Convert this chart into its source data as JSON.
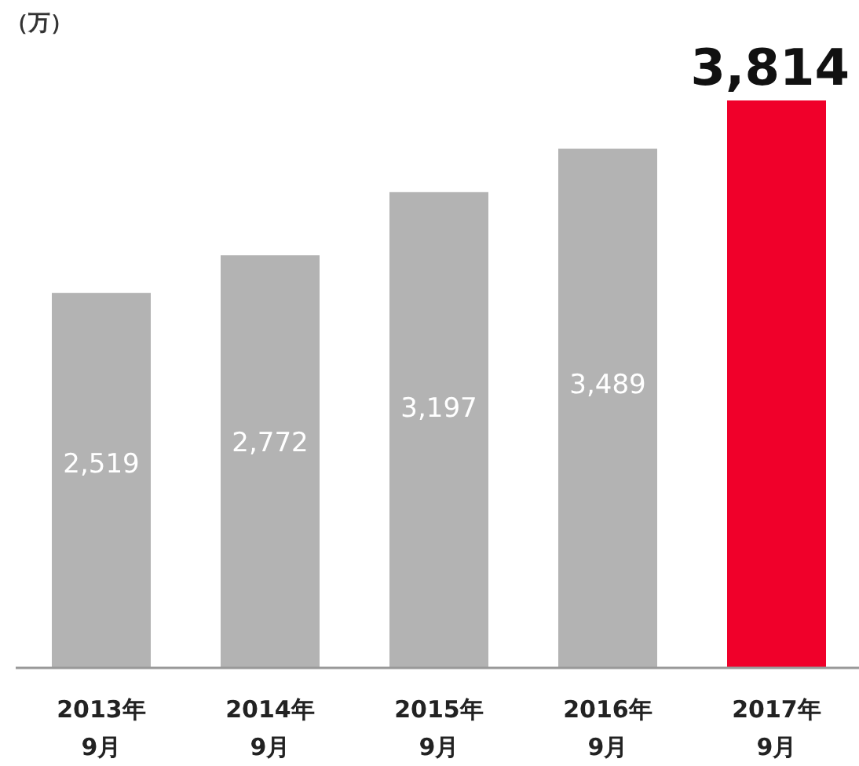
{
  "chart_data": {
    "type": "bar",
    "ylabel": "（万）",
    "categories": [
      "2013年\n9月",
      "2014年\n9月",
      "2015年\n9月",
      "2016年\n9月",
      "2017年\n9月"
    ],
    "values": [
      2519,
      2772,
      3197,
      3489,
      3814
    ],
    "value_labels": [
      "2,519",
      "2,772",
      "3,197",
      "3,489",
      "3,814"
    ],
    "colors": [
      "#b3b3b3",
      "#b3b3b3",
      "#b3b3b3",
      "#b3b3b3",
      "#f0002a"
    ]
  }
}
